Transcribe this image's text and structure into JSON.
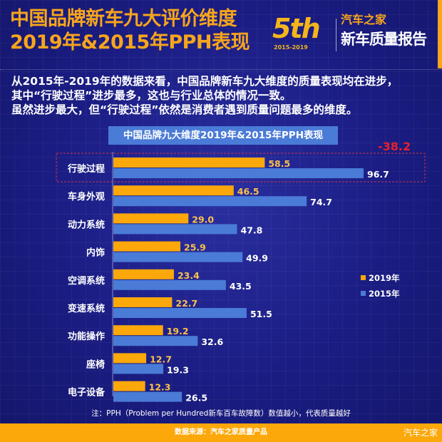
{
  "header": {
    "title_line1": "中国品牌新车九大评价维度",
    "title_line2": "2019年&2015年PPH表现",
    "logo": {
      "edition": "5th",
      "years": "2015-2019",
      "brand": "汽车之家",
      "report": "新车质量报告"
    }
  },
  "description": [
    "从2015年-2019年的数据来看，中国品牌新车九大维度的质量表现均在进步，",
    "其中“行驶过程”进步最多，这也与行业总体的情况一致。",
    "虽然进步最大，但“行驶过程”依然是消费者遇到质量问题最多的维度。"
  ],
  "chart_data": {
    "type": "bar",
    "orientation": "horizontal",
    "title": "中国品牌九大维度2019年&2015年PPH表现",
    "categories": [
      "行驶过程",
      "车身外观",
      "动力系统",
      "内饰",
      "空调系统",
      "变速系统",
      "功能操作",
      "座椅",
      "电子设备"
    ],
    "series": [
      {
        "name": "2019年",
        "color": "#fca80a",
        "values": [
          58.5,
          46.5,
          29.0,
          25.9,
          23.4,
          22.7,
          19.2,
          12.7,
          12.3
        ]
      },
      {
        "name": "2015年",
        "color": "#4a7bd6",
        "values": [
          96.7,
          74.7,
          47.8,
          49.9,
          43.5,
          51.5,
          32.6,
          19.3,
          26.5
        ]
      }
    ],
    "annotation": {
      "category": "行驶过程",
      "text": "-38.2",
      "color": "#e8202a"
    },
    "legend": "right",
    "grid": false
  },
  "footnote": "注：PPH（Problem per Hundred新车百车故障数）数值越小，代表质量越好",
  "footer": {
    "source": "数据来源：汽车之家质量产品",
    "watermark": "汽车之家"
  }
}
